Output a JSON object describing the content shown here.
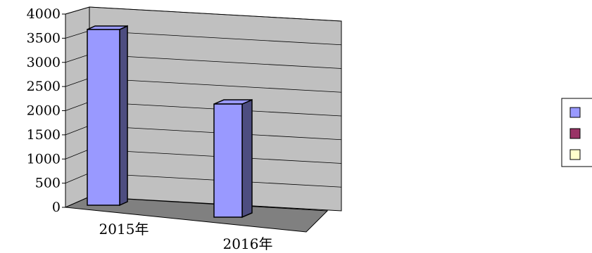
{
  "chart_data": {
    "type": "bar",
    "categories": [
      "2015年",
      "2016年"
    ],
    "values": [
      3650,
      2350
    ],
    "ylim": [
      0,
      4000
    ],
    "yticks": [
      "0",
      "500",
      "1000",
      "1500",
      "2000",
      "2500",
      "3000",
      "3500",
      "4000"
    ],
    "grid": true,
    "legend_position": "right",
    "legend": [
      {
        "color": "#9999ff"
      },
      {
        "color": "#993366"
      },
      {
        "color": "#ffffcc"
      }
    ],
    "colors": {
      "bar_front": "#9999ff",
      "bar_side": "#4d4d80",
      "wall": "#c0c0c0",
      "floor": "#808080"
    }
  }
}
